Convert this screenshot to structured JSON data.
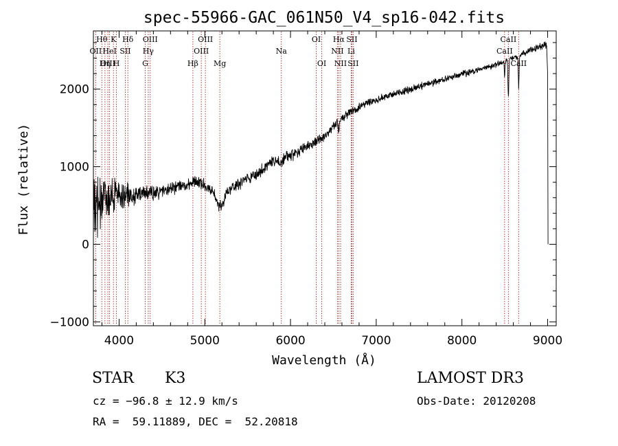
{
  "colors": {
    "background": "#ffffff",
    "axis": "#000000",
    "spectrum": "#000000",
    "line_marker": "#b22222"
  },
  "chart_data": {
    "type": "line",
    "title": "spec-55966-GAC_061N50_V4_sp16-042.fits",
    "xlabel": "Wavelength (Å)",
    "ylabel": "Flux (relative)",
    "xlim": [
      3700,
      9100
    ],
    "ylim": [
      -1050,
      2750
    ],
    "xticks": [
      4000,
      5000,
      6000,
      7000,
      8000,
      9000
    ],
    "xtick_labels": [
      "4000",
      "5000",
      "6000",
      "7000",
      "8000",
      "9000"
    ],
    "yticks": [
      -1000,
      0,
      1000,
      2000
    ],
    "ytick_labels": [
      "−1000",
      "0",
      "1000",
      "2000"
    ],
    "x_minor_step": 200,
    "y_minor_step": 200,
    "continuum": {
      "x": [
        3700,
        3850,
        4000,
        4200,
        4400,
        4700,
        4900,
        5100,
        5200,
        5400,
        5600,
        5800,
        6000,
        6200,
        6400,
        6550,
        6700,
        6900,
        7100,
        7500,
        8000,
        8300,
        8500,
        8600,
        8800,
        9000
      ],
      "y": [
        500,
        600,
        620,
        640,
        660,
        740,
        820,
        700,
        650,
        780,
        900,
        1060,
        1140,
        1260,
        1390,
        1580,
        1700,
        1820,
        1900,
        2030,
        2190,
        2280,
        2360,
        2400,
        2500,
        2580
      ]
    },
    "noise": {
      "x": [
        3700,
        3800,
        3950,
        4100,
        4400,
        5000,
        6000,
        7000,
        8500,
        9000
      ],
      "amplitude": [
        520,
        420,
        300,
        180,
        120,
        100,
        90,
        60,
        50,
        60
      ]
    },
    "absorption_features": [
      {
        "center": 5175,
        "depth": 180,
        "width": 40
      },
      {
        "center": 5890,
        "depth": 60,
        "width": 15
      },
      {
        "center": 8498,
        "depth": 200,
        "width": 4
      },
      {
        "center": 8542,
        "depth": 500,
        "width": 5
      },
      {
        "center": 8662,
        "depth": 400,
        "width": 5
      },
      {
        "center": 6563,
        "depth": 120,
        "width": 8
      }
    ],
    "line_markers": [
      {
        "label": "Hθ",
        "wavelength": 3798,
        "row": 0
      },
      {
        "label": "OII",
        "wavelength": 3727,
        "row": 1
      },
      {
        "label": "OIII",
        "wavelength": 3869,
        "row": 2
      },
      {
        "label": "K",
        "wavelength": 3934,
        "row": 0
      },
      {
        "label": "HeI",
        "wavelength": 3889,
        "row": 1
      },
      {
        "label": "Hη",
        "wavelength": 3835,
        "row": 2
      },
      {
        "label": "Hδ",
        "wavelength": 4102,
        "row": 0
      },
      {
        "label": "SII",
        "wavelength": 4072,
        "row": 1
      },
      {
        "label": "H",
        "wavelength": 3969,
        "row": 2
      },
      {
        "label": "OIII",
        "wavelength": 4363,
        "row": 0
      },
      {
        "label": "Hγ",
        "wavelength": 4340,
        "row": 1
      },
      {
        "label": "G",
        "wavelength": 4305,
        "row": 2
      },
      {
        "label": "Hβ",
        "wavelength": 4861,
        "row": 2
      },
      {
        "label": "OIII",
        "wavelength": 5007,
        "row": 0
      },
      {
        "label": "OIII",
        "wavelength": 4959,
        "row": 1
      },
      {
        "label": "Mg",
        "wavelength": 5175,
        "row": 2
      },
      {
        "label": "Na",
        "wavelength": 5893,
        "row": 1
      },
      {
        "label": "OI",
        "wavelength": 6300,
        "row": 0
      },
      {
        "label": "OI",
        "wavelength": 6364,
        "row": 2
      },
      {
        "label": "Hα",
        "wavelength": 6563,
        "row": 0
      },
      {
        "label": "SII",
        "wavelength": 6716,
        "row": 0
      },
      {
        "label": "NII",
        "wavelength": 6548,
        "row": 1
      },
      {
        "label": "Li",
        "wavelength": 6708,
        "row": 1
      },
      {
        "label": "NII",
        "wavelength": 6584,
        "row": 2
      },
      {
        "label": "SII",
        "wavelength": 6731,
        "row": 2
      },
      {
        "label": "CaII",
        "wavelength": 8542,
        "row": 0
      },
      {
        "label": "CaII",
        "wavelength": 8498,
        "row": 1
      },
      {
        "label": "CaII",
        "wavelength": 8662,
        "row": 2
      }
    ]
  },
  "info": {
    "object_class": "STAR",
    "subclass": "K3",
    "survey": "LAMOST DR3",
    "redshift": "cz = −96.8 ± 12.9 km/s",
    "obs_date": "Obs-Date: 20120208",
    "coords": "RA =  59.11889, DEC =  52.20818"
  }
}
